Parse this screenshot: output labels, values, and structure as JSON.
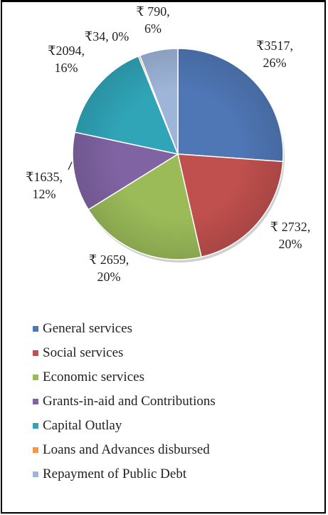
{
  "chart_data": {
    "type": "pie",
    "title": "",
    "slices": [
      {
        "name": "General services",
        "value": 3517,
        "percent": 26,
        "label": [
          "₹3517,",
          "26%"
        ],
        "color": "#4f77b6"
      },
      {
        "name": "Social services",
        "value": 2732,
        "percent": 20,
        "label": [
          "₹ 2732,",
          "20%"
        ],
        "color": "#c0504d"
      },
      {
        "name": "Economic services",
        "value": 2659,
        "percent": 20,
        "label": [
          "₹ 2659,",
          "20%"
        ],
        "color": "#9bbb59"
      },
      {
        "name": "Grants-in-aid and Contributions",
        "value": 1635,
        "percent": 12,
        "label": [
          "₹1635,",
          "12%"
        ],
        "color": "#7f63a3"
      },
      {
        "name": "Capital Outlay",
        "value": 2094,
        "percent": 16,
        "label": [
          "₹2094,",
          "16%"
        ],
        "color": "#30a5b8"
      },
      {
        "name": "Loans and Advances disbursed",
        "value": 34,
        "percent": 0,
        "label": [
          "₹34, 0%"
        ],
        "color": "#f79646"
      },
      {
        "name": "Repayment of Public Debt",
        "value": 790,
        "percent": 6,
        "label": [
          "₹ 790,",
          "6%"
        ],
        "color": "#9eb5d9"
      }
    ],
    "legend_position": "bottom"
  }
}
